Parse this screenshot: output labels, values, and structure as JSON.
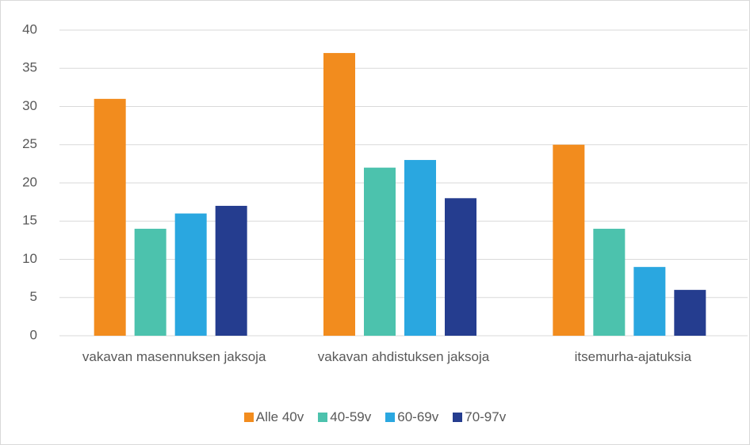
{
  "chart_data": {
    "type": "bar",
    "categories": [
      "vakavan masennuksen jaksoja",
      "vakavan ahdistuksen jaksoja",
      "itsemurha-ajatuksia"
    ],
    "series": [
      {
        "name": "Alle 40v",
        "color": "#f28c1e",
        "values": [
          31,
          37,
          25
        ]
      },
      {
        "name": "40-59v",
        "color": "#4cc2ad",
        "values": [
          14,
          22,
          14
        ]
      },
      {
        "name": "60-69v",
        "color": "#2aa7e0",
        "values": [
          16,
          23,
          9
        ]
      },
      {
        "name": "70-97v",
        "color": "#253d8f",
        "values": [
          17,
          18,
          6
        ]
      }
    ],
    "ylim": [
      0,
      40
    ],
    "yticks": [
      0,
      5,
      10,
      15,
      20,
      25,
      30,
      35,
      40
    ],
    "grid": true,
    "legend": "bottom"
  }
}
